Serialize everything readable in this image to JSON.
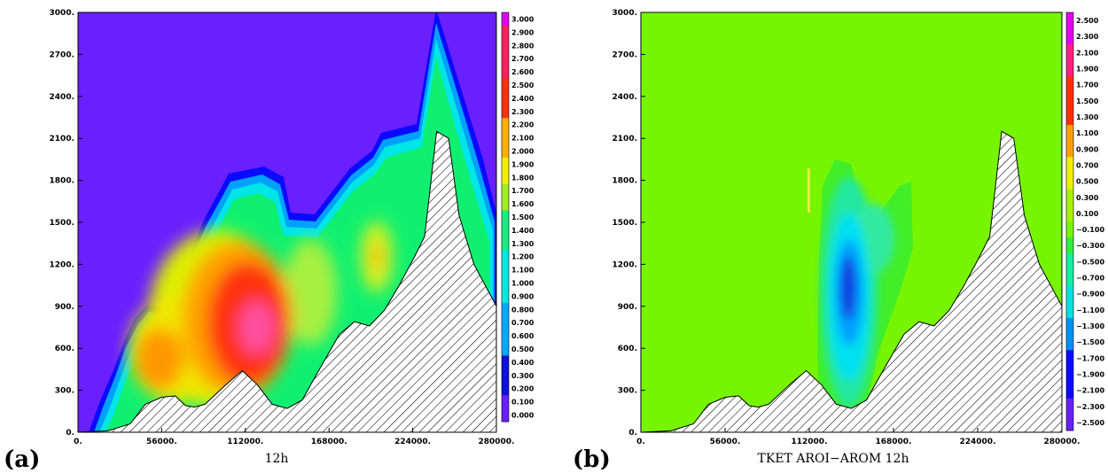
{
  "panels": [
    {
      "label": "(a)",
      "caption": "12h",
      "x_ticks": [
        "0.",
        "56000.",
        "112000.",
        "168000.",
        "224000.",
        "280000."
      ],
      "y_ticks": [
        "0.",
        "300.",
        "600.",
        "900.",
        "1200.",
        "1500.",
        "1800.",
        "2100.",
        "2400.",
        "2700.",
        "3000."
      ],
      "colorbar_labels": [
        "3.000",
        "2.900",
        "2.800",
        "2.700",
        "2.600",
        "2.500",
        "2.400",
        "2.300",
        "2.200",
        "2.100",
        "2.000",
        "1.900",
        "1.800",
        "1.700",
        "1.600",
        "1.500",
        "1.400",
        "1.300",
        "1.200",
        "1.100",
        "1.000",
        "0.900",
        "0.800",
        "0.700",
        "0.600",
        "0.500",
        "0.400",
        "0.300",
        "0.200",
        "0.100",
        "0.000"
      ],
      "background_color": "#6a1fff"
    },
    {
      "label": "(b)",
      "caption": "TKET AROI−AROM 12h",
      "x_ticks": [
        "0.",
        "56000.",
        "112000.",
        "168000.",
        "224000.",
        "280000."
      ],
      "y_ticks": [
        "0.",
        "300.",
        "600.",
        "900.",
        "1200.",
        "1500.",
        "1800.",
        "2100.",
        "2400.",
        "2700.",
        "3000."
      ],
      "colorbar_labels": [
        "2.500",
        "2.300",
        "2.100",
        "1.900",
        "1.700",
        "1.500",
        "1.300",
        "1.100",
        "0.900",
        "0.700",
        "0.500",
        "0.300",
        "0.100",
        "−0.100",
        "−0.300",
        "−0.500",
        "−0.700",
        "−0.900",
        "−1.100",
        "−1.300",
        "−1.500",
        "−1.700",
        "−1.900",
        "−2.100",
        "−2.300",
        "−2.500"
      ],
      "background_color": "#77f500"
    }
  ],
  "chart_data": [
    {
      "type": "heatmap",
      "title": "12h",
      "x_range": [
        0,
        280000
      ],
      "y_range": [
        0,
        3000
      ],
      "colorbar_range": [
        0,
        3
      ],
      "terrain": {
        "x": [
          0,
          20000,
          35000,
          45000,
          56000,
          65000,
          72000,
          78000,
          85000,
          100000,
          110000,
          120000,
          130000,
          140000,
          150000,
          160000,
          175000,
          185000,
          195000,
          205000,
          215000,
          225000,
          232000,
          240000,
          248000,
          255000,
          265000,
          280000
        ],
        "y": [
          0,
          10,
          60,
          200,
          250,
          260,
          190,
          180,
          200,
          350,
          440,
          340,
          200,
          170,
          230,
          420,
          700,
          790,
          760,
          870,
          1050,
          1250,
          1400,
          2150,
          2100,
          1550,
          1200,
          900
        ]
      },
      "tke_maximum": {
        "x": 118000,
        "y": 750,
        "value": 2.3
      },
      "secondary_maximum": {
        "x": 203000,
        "y": 1200,
        "value": 1.9
      }
    },
    {
      "type": "heatmap",
      "title": "TKET AROI−AROM 12h",
      "x_range": [
        0,
        280000
      ],
      "y_range": [
        0,
        3000
      ],
      "colorbar_range": [
        -2.5,
        2.5
      ],
      "terrain": {
        "x": [
          0,
          20000,
          35000,
          45000,
          56000,
          65000,
          72000,
          78000,
          85000,
          100000,
          110000,
          120000,
          130000,
          140000,
          150000,
          160000,
          175000,
          185000,
          195000,
          205000,
          215000,
          225000,
          232000,
          240000,
          248000,
          255000,
          265000,
          280000
        ],
        "y": [
          0,
          10,
          60,
          200,
          250,
          260,
          190,
          180,
          200,
          350,
          440,
          340,
          200,
          170,
          230,
          420,
          700,
          790,
          760,
          870,
          1050,
          1250,
          1400,
          2150,
          2100,
          1550,
          1200,
          900
        ]
      },
      "difference_minimum": {
        "x": 137000,
        "y": 1050,
        "value": -1.9
      }
    }
  ]
}
